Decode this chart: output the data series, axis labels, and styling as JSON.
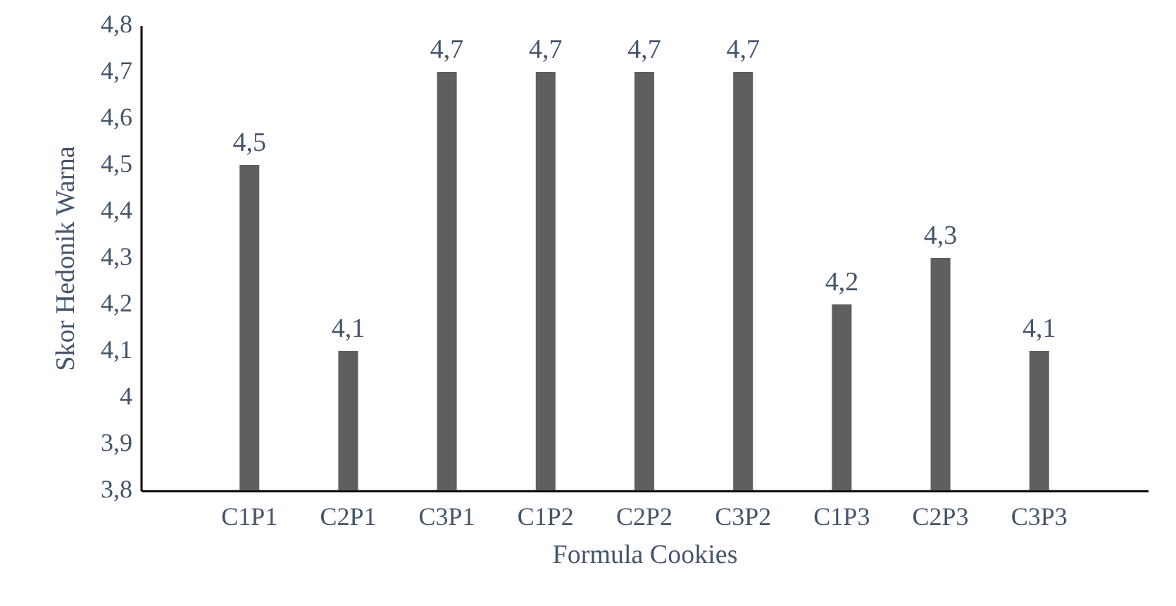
{
  "chart_data": {
    "type": "bar",
    "xlabel": "Formula Cookies",
    "ylabel": "Skor Hedonik Warna",
    "categories": [
      "C1P1",
      "C2P1",
      "C3P1",
      "C1P2",
      "C2P2",
      "C3P2",
      "C1P3",
      "C2P3",
      "C3P3"
    ],
    "values": [
      4.5,
      4.1,
      4.7,
      4.7,
      4.7,
      4.7,
      4.2,
      4.3,
      4.1
    ],
    "value_labels": [
      "4,5",
      "4,1",
      "4,7",
      "4,7",
      "4,7",
      "4,7",
      "4,2",
      "4,3",
      "4,1"
    ],
    "color": "#5f5f5f",
    "ylim": [
      3.8,
      4.8
    ],
    "yticks": [
      {
        "value": 3.8,
        "label": "3,8"
      },
      {
        "value": 3.9,
        "label": "3,9"
      },
      4,
      {
        "value": 4.1,
        "label": "4,1"
      },
      {
        "value": 4.2,
        "label": "4,2"
      },
      {
        "value": 4.3,
        "label": "4,3"
      },
      {
        "value": 4.4,
        "label": "4,4"
      },
      {
        "value": 4.5,
        "label": "4,5"
      },
      {
        "value": 4.6,
        "label": "4,6"
      },
      {
        "value": 4.7,
        "label": "4,7"
      },
      {
        "value": 4.8,
        "label": "4,8"
      }
    ],
    "grid": false
  }
}
